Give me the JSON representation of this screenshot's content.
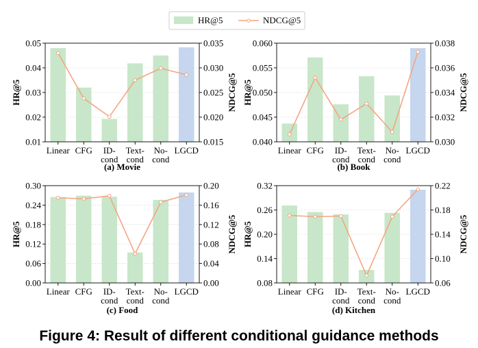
{
  "legend": {
    "bar_label": "HR@5",
    "line_label": "NDCG@5"
  },
  "figure_caption": "Figure 4: Result of different conditional guidance methods",
  "colors": {
    "bar": "#c8e6c9",
    "bar_highlight": "#c5d6ee",
    "line": "#f4a582",
    "marker_fill": "#ffffff"
  },
  "chart_data": [
    {
      "type": "bar",
      "caption": "(a)  Movie",
      "categories": [
        [
          "Linear"
        ],
        [
          "CFG"
        ],
        [
          "ID-",
          "cond"
        ],
        [
          "Text-",
          "cond"
        ],
        [
          "No-",
          "cond"
        ],
        [
          "LGCD"
        ]
      ],
      "series": [
        {
          "name": "HR@5",
          "axis": "left",
          "values": [
            0.048,
            0.032,
            0.0193,
            0.0418,
            0.045,
            0.0483
          ]
        },
        {
          "name": "NDCG@5",
          "axis": "right",
          "type": "line",
          "values": [
            0.033,
            0.0238,
            0.0201,
            0.0275,
            0.0299,
            0.0286
          ]
        }
      ],
      "ylabel": "HR@5",
      "ylabel_right": "NDCG@5",
      "ylim": [
        0.01,
        0.05
      ],
      "yticks": [
        "0.01",
        "0.02",
        "0.03",
        "0.04",
        "0.05"
      ],
      "ylim_right": [
        0.015,
        0.035
      ],
      "yticks_right": [
        "0.015",
        "0.020",
        "0.025",
        "0.030",
        "0.035"
      ],
      "highlight_index": 5,
      "grid": true
    },
    {
      "type": "bar",
      "caption": "(b)  Book",
      "categories": [
        [
          "Linear"
        ],
        [
          "CFG"
        ],
        [
          "ID-",
          "cond"
        ],
        [
          "Text-",
          "cond"
        ],
        [
          "No-",
          "cond"
        ],
        [
          "LGCD"
        ]
      ],
      "series": [
        {
          "name": "HR@5",
          "axis": "left",
          "values": [
            0.0437,
            0.0571,
            0.0476,
            0.0533,
            0.0494,
            0.059
          ]
        },
        {
          "name": "NDCG@5",
          "axis": "right",
          "type": "line",
          "values": [
            0.0306,
            0.0352,
            0.0318,
            0.0331,
            0.0308,
            0.0373
          ]
        }
      ],
      "ylabel": "HR@5",
      "ylabel_right": "NDCG@5",
      "ylim": [
        0.04,
        0.06
      ],
      "yticks": [
        "0.040",
        "0.045",
        "0.050",
        "0.055",
        "0.060"
      ],
      "ylim_right": [
        0.03,
        0.038
      ],
      "yticks_right": [
        "0.030",
        "0.032",
        "0.034",
        "0.036",
        "0.038"
      ],
      "highlight_index": 5,
      "grid": true
    },
    {
      "type": "bar",
      "caption": "(c)  Food",
      "categories": [
        [
          "Linear"
        ],
        [
          "CFG"
        ],
        [
          "ID-",
          "cond"
        ],
        [
          "Text-",
          "cond"
        ],
        [
          "No-",
          "cond"
        ],
        [
          "LGCD"
        ]
      ],
      "series": [
        {
          "name": "HR@5",
          "axis": "left",
          "values": [
            0.265,
            0.269,
            0.266,
            0.094,
            0.256,
            0.279
          ]
        },
        {
          "name": "NDCG@5",
          "axis": "right",
          "type": "line",
          "values": [
            0.175,
            0.173,
            0.179,
            0.06,
            0.166,
            0.181
          ]
        }
      ],
      "ylabel": "HR@5",
      "ylabel_right": "NDCG@5",
      "ylim": [
        0.0,
        0.3
      ],
      "yticks": [
        "0.00",
        "0.06",
        "0.12",
        "0.18",
        "0.24",
        "0.30"
      ],
      "ylim_right": [
        0.0,
        0.2
      ],
      "yticks_right": [
        "0.00",
        "0.04",
        "0.08",
        "0.12",
        "0.16",
        "0.20"
      ],
      "highlight_index": 5,
      "grid": true
    },
    {
      "type": "bar",
      "caption": "(d)  Kitchen",
      "categories": [
        [
          "Linear"
        ],
        [
          "CFG"
        ],
        [
          "ID-",
          "cond"
        ],
        [
          "Text-",
          "cond"
        ],
        [
          "No-",
          "cond"
        ],
        [
          "LGCD"
        ]
      ],
      "series": [
        {
          "name": "HR@5",
          "axis": "left",
          "values": [
            0.271,
            0.255,
            0.249,
            0.112,
            0.253,
            0.31
          ]
        },
        {
          "name": "NDCG@5",
          "axis": "right",
          "type": "line",
          "values": [
            0.171,
            0.169,
            0.17,
            0.072,
            0.169,
            0.214
          ]
        }
      ],
      "ylabel": "HR@5",
      "ylabel_right": "NDCG@5",
      "ylim": [
        0.08,
        0.32
      ],
      "yticks": [
        "0.08",
        "0.14",
        "0.20",
        "0.26",
        "0.32"
      ],
      "ylim_right": [
        0.06,
        0.22
      ],
      "yticks_right": [
        "0.06",
        "0.10",
        "0.14",
        "0.18",
        "0.22"
      ],
      "highlight_index": 5,
      "grid": true
    }
  ]
}
